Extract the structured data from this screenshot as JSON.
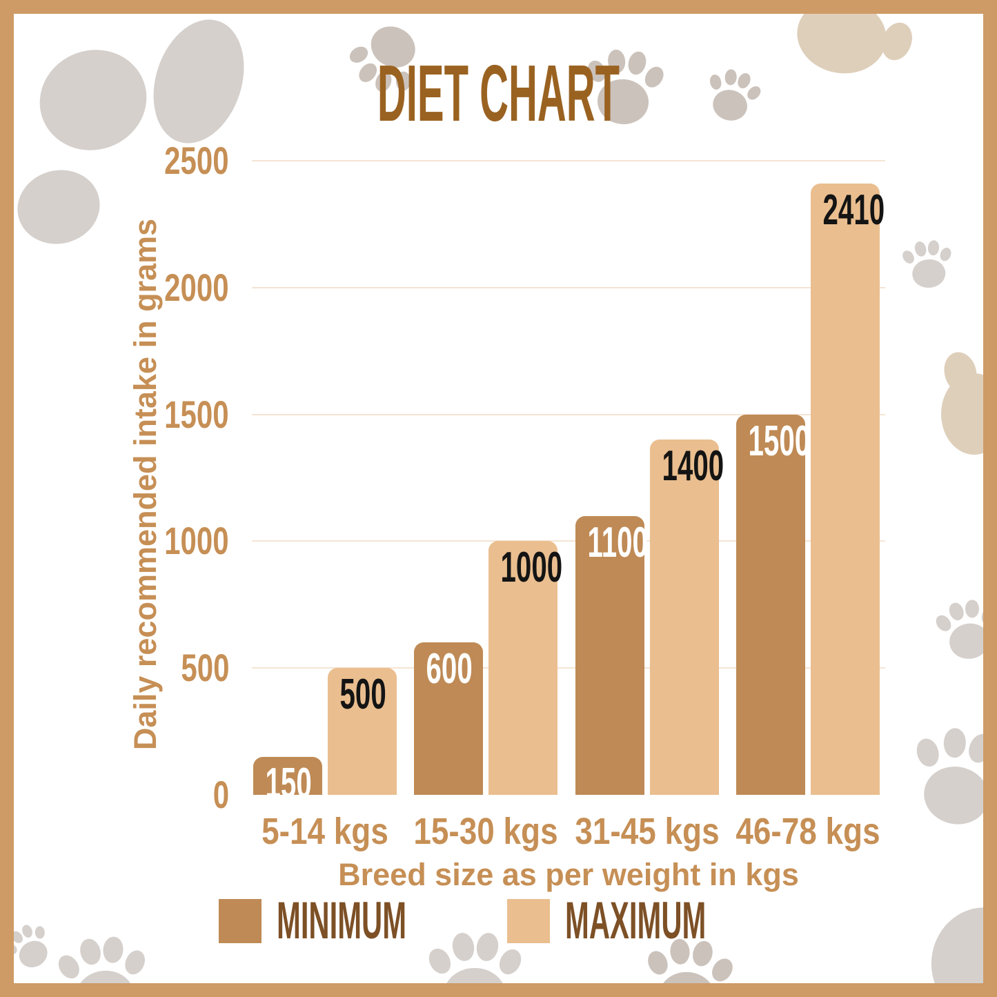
{
  "title": "DIET CHART",
  "colors": {
    "frame": "#CE9A66",
    "background": "#FFFFFF",
    "title_text": "#9A6221",
    "axis_text": "#C68F55",
    "gridline": "#F5E4D3",
    "minimum_bar": "#BF8A55",
    "maximum_bar": "#EABE8F",
    "value_label_on_minimum": "#FFFFFF",
    "value_label_on_maximum": "#141414",
    "legend_text": "#7D5026",
    "paw_gray": "#D5D0CC",
    "paw_taupe": "#CBC2BB",
    "paw_beige": "#DECFBB"
  },
  "chart_data": {
    "type": "bar",
    "title": "DIET CHART",
    "categories": [
      "5-14 kgs",
      "15-30 kgs",
      "31-45 kgs",
      "46-78 kgs"
    ],
    "series": [
      {
        "name": "MINIMUM",
        "values": [
          150,
          600,
          1100,
          1500
        ]
      },
      {
        "name": "MAXIMUM",
        "values": [
          500,
          1000,
          1400,
          2410
        ]
      }
    ],
    "xlabel": "Breed size as per weight in kgs",
    "ylabel": "Daily recommended intake in grams",
    "ylim": [
      0,
      2500
    ],
    "yticks": [
      0,
      500,
      1000,
      1500,
      2000,
      2500
    ],
    "grid": "horizontal",
    "legend_position": "bottom",
    "value_labels": "inside-top"
  },
  "legend": {
    "items": [
      {
        "label": "MINIMUM"
      },
      {
        "label": "MAXIMUM"
      }
    ]
  }
}
